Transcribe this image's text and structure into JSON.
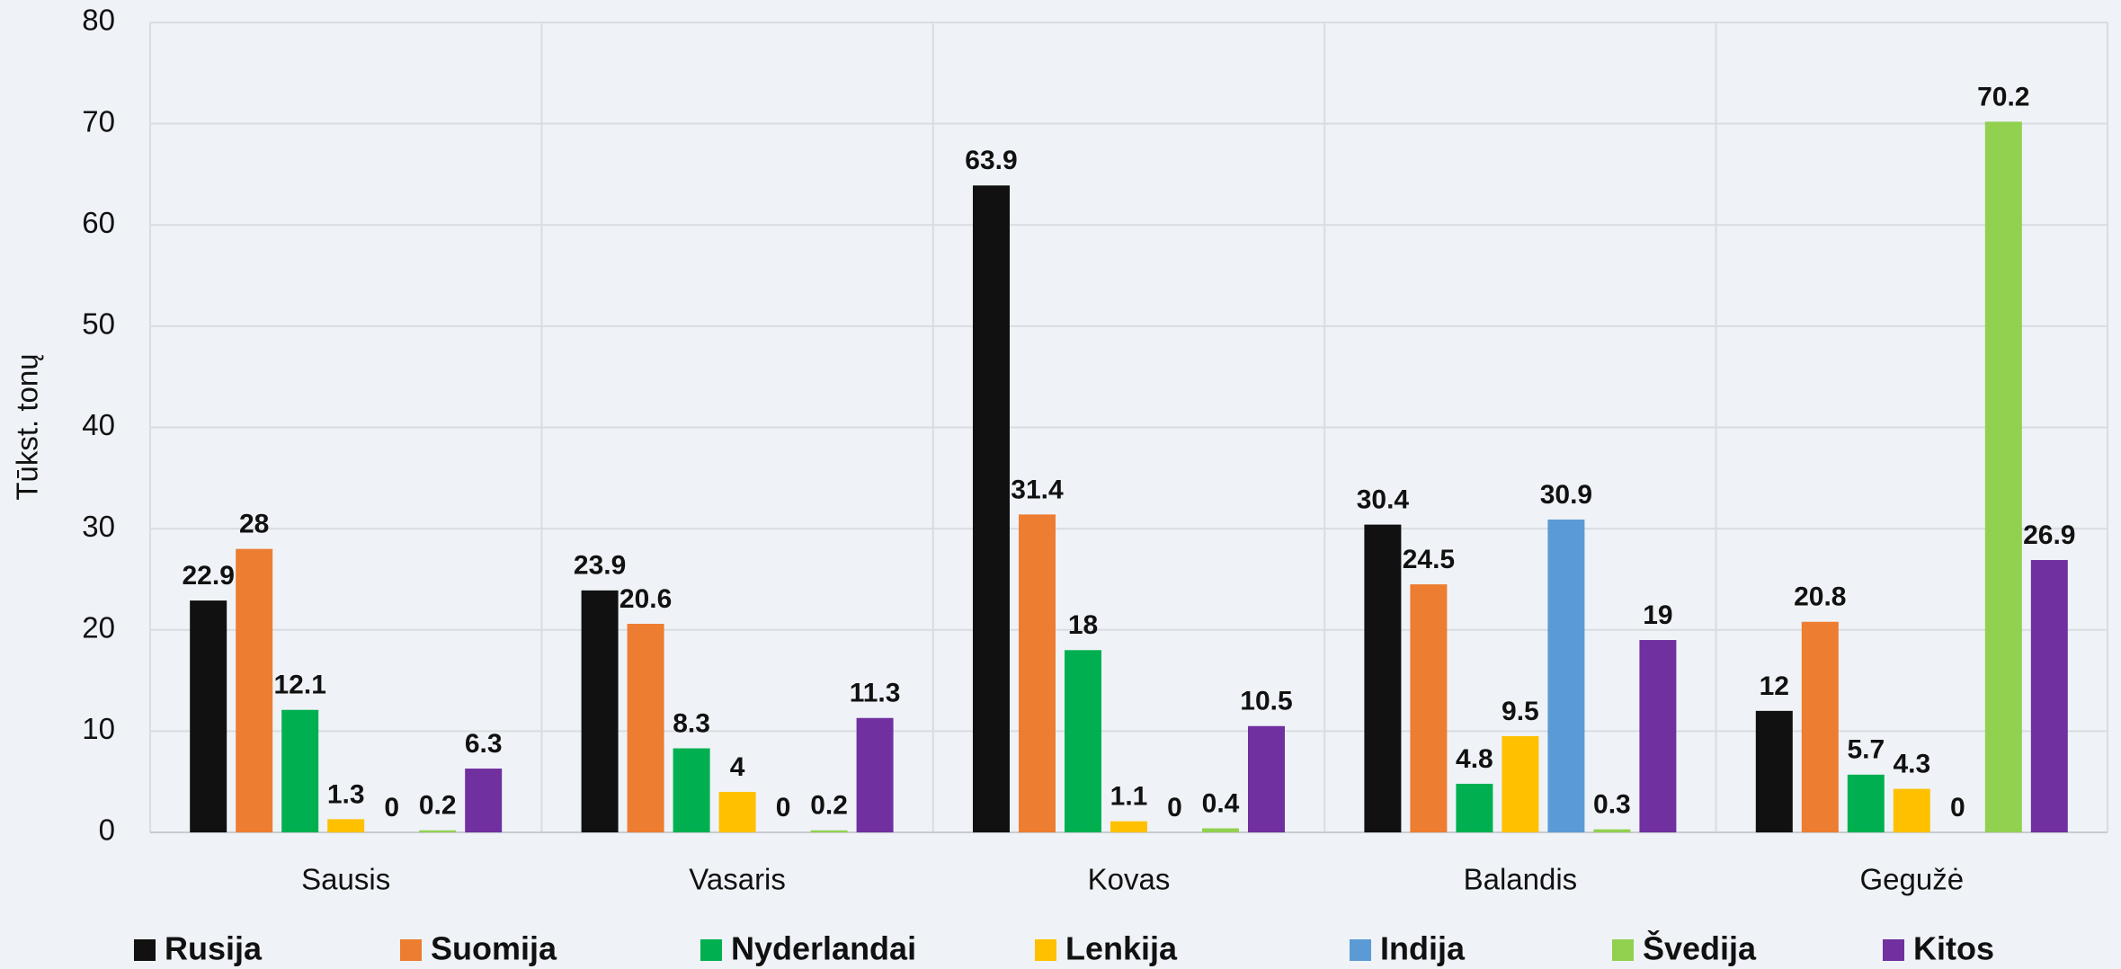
{
  "chart_data": {
    "type": "bar",
    "y_label": "Tūkst. tonų",
    "categories": [
      "Sausis",
      "Vasaris",
      "Kovas",
      "Balandis",
      "Gegužė"
    ],
    "series": [
      {
        "name": "Rusija",
        "color": "#111111",
        "values": [
          22.9,
          23.9,
          63.9,
          30.4,
          12
        ]
      },
      {
        "name": "Suomija",
        "color": "#ed7d31",
        "values": [
          28,
          20.6,
          31.4,
          24.5,
          20.8
        ]
      },
      {
        "name": "Nyderlandai",
        "color": "#00b050",
        "values": [
          12.1,
          8.3,
          18,
          4.8,
          5.7
        ]
      },
      {
        "name": "Lenkija",
        "color": "#ffc000",
        "values": [
          1.3,
          4,
          1.1,
          9.5,
          4.3
        ]
      },
      {
        "name": "Indija",
        "color": "#5b9bd5",
        "values": [
          0,
          0,
          0,
          30.9,
          0
        ]
      },
      {
        "name": "Švedija",
        "color": "#92d050",
        "values": [
          0.2,
          0.2,
          0.4,
          0.3,
          70.2
        ]
      },
      {
        "name": "Kitos",
        "color": "#7030a0",
        "values": [
          6.3,
          11.3,
          10.5,
          19,
          26.9
        ]
      }
    ],
    "ylim": [
      0,
      80
    ],
    "yticks": [
      0,
      10,
      20,
      30,
      40,
      50,
      60,
      70,
      80
    ],
    "grid": true,
    "legend": "bottom"
  }
}
